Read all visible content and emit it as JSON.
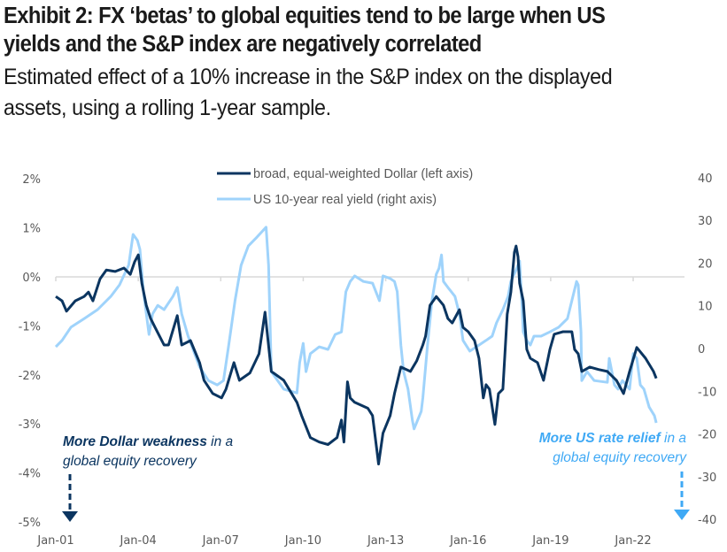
{
  "header": {
    "title_line1": "Exhibit 2: FX ‘betas’ to global equities tend to be large when US",
    "title_line2": "yields and the S&P index are negatively correlated",
    "subtitle_line1": "Estimated effect of a 10% increase in the S&P index on the displayed",
    "subtitle_line2": "assets, using a rolling 1-year sample."
  },
  "colors": {
    "dollar": "#0b3560",
    "real_yield": "#9fd3fb",
    "anno_dollar": "#0b3560",
    "anno_yield": "#3fa9f5",
    "grid": "#d9d9d9",
    "tick_text": "#595959"
  },
  "chart_data": {
    "type": "line",
    "title": "Exhibit 2: FX ‘betas’ to global equities tend to be large when US yields and the S&P index are negatively correlated",
    "subtitle": "Estimated effect of a 10% increase in the S&P index on the displayed assets, using a rolling 1-year sample.",
    "xlabel": "",
    "ylabel_left": "",
    "ylabel_right": "",
    "x_ticks": [
      "Jan-01",
      "Jan-04",
      "Jan-07",
      "Jan-10",
      "Jan-13",
      "Jan-16",
      "Jan-19",
      "Jan-22"
    ],
    "x_tick_years": [
      2001,
      2004,
      2007,
      2010,
      2013,
      2016,
      2019,
      2022
    ],
    "xlim": [
      2001,
      2023.5
    ],
    "y_left_ticks": [
      "2%",
      "1%",
      "0%",
      "-1%",
      "-2%",
      "-3%",
      "-4%",
      "-5%"
    ],
    "y_left_tick_values": [
      2,
      1,
      0,
      -1,
      -2,
      -3,
      -4,
      -5
    ],
    "ylim_left": [
      -5,
      2
    ],
    "y_right_ticks": [
      "40",
      "30",
      "20",
      "10",
      "0",
      "-10",
      "-20",
      "-30",
      "-40"
    ],
    "y_right_tick_values": [
      40,
      30,
      20,
      10,
      0,
      -10,
      -20,
      -30,
      -40
    ],
    "ylim_right": [
      -40,
      40
    ],
    "grid": "zero line only (left axis 0%)",
    "legend": {
      "placement": "top-center",
      "entries": [
        "broad, equal-weighted Dollar (left axis)",
        "US 10-year real yield (right axis)"
      ]
    },
    "annotations": [
      {
        "bold": "More Dollar weakness",
        "rest": " in a",
        "line2": "global equity recovery",
        "placement": "bottom-left",
        "arrow": "down"
      },
      {
        "bold": "More US rate relief",
        "rest": " in a",
        "line2": "global equity recovery",
        "placement": "bottom-right",
        "arrow": "down"
      }
    ],
    "series": [
      {
        "name": "broad, equal-weighted Dollar (left axis)",
        "axis": "left",
        "unit": "%",
        "x": [
          2001.0,
          2001.23,
          2001.39,
          2001.71,
          2002.03,
          2002.19,
          2002.35,
          2002.61,
          2002.84,
          2003.16,
          2003.48,
          2003.71,
          2003.87,
          2004.0,
          2004.13,
          2004.29,
          2004.45,
          2004.61,
          2004.94,
          2005.1,
          2005.42,
          2005.58,
          2005.9,
          2006.23,
          2006.39,
          2006.71,
          2007.03,
          2007.19,
          2007.48,
          2007.68,
          2008.06,
          2008.39,
          2008.61,
          2008.84,
          2009.29,
          2009.77,
          2009.94,
          2010.26,
          2010.58,
          2010.9,
          2011.23,
          2011.39,
          2011.48,
          2011.61,
          2011.71,
          2011.87,
          2012.35,
          2012.52,
          2012.68,
          2012.74,
          2012.9,
          2013.16,
          2013.32,
          2013.55,
          2013.9,
          2014.13,
          2014.35,
          2014.45,
          2014.61,
          2014.84,
          2015.1,
          2015.26,
          2015.42,
          2015.68,
          2015.81,
          2016.0,
          2016.23,
          2016.39,
          2016.55,
          2016.65,
          2016.77,
          2016.97,
          2017.1,
          2017.26,
          2017.42,
          2017.55,
          2017.68,
          2017.74,
          2017.81,
          2017.87,
          2018.0,
          2018.13,
          2018.26,
          2018.52,
          2018.74,
          2018.97,
          2019.13,
          2019.45,
          2019.77,
          2019.87,
          2020.0,
          2020.13,
          2020.42,
          2020.74,
          2021.06,
          2021.39,
          2021.65,
          2021.87,
          2022.13,
          2022.45,
          2022.74,
          2022.84
        ],
        "values": [
          -0.4,
          -0.49,
          -0.7,
          -0.49,
          -0.4,
          -0.31,
          -0.49,
          -0.04,
          0.14,
          0.11,
          0.18,
          0.05,
          0.31,
          0.45,
          -0.13,
          -0.58,
          -0.85,
          -1.03,
          -1.39,
          -1.39,
          -0.79,
          -1.39,
          -1.3,
          -1.75,
          -2.11,
          -2.38,
          -2.47,
          -2.29,
          -1.75,
          -2.11,
          -1.96,
          -1.57,
          -0.72,
          -1.93,
          -2.11,
          -2.56,
          -2.83,
          -3.28,
          -3.37,
          -3.42,
          -3.28,
          -2.92,
          -3.37,
          -2.14,
          -2.47,
          -2.56,
          -2.68,
          -2.83,
          -3.55,
          -3.82,
          -3.19,
          -2.83,
          -2.38,
          -1.84,
          -1.93,
          -1.71,
          -1.39,
          -1.21,
          -0.58,
          -0.4,
          -0.58,
          -0.85,
          -0.94,
          -0.67,
          -1.03,
          -1.12,
          -1.3,
          -1.66,
          -2.47,
          -2.2,
          -2.29,
          -3.01,
          -2.38,
          -2.29,
          -0.76,
          -0.31,
          0.5,
          0.63,
          0.41,
          -0.13,
          -0.49,
          -1.48,
          -1.66,
          -1.75,
          -2.11,
          -1.48,
          -1.17,
          -1.12,
          -1.12,
          -1.48,
          -1.57,
          -1.93,
          -1.84,
          -1.89,
          -1.93,
          -2.11,
          -2.38,
          -1.93,
          -1.44,
          -1.66,
          -1.93,
          -2.07
        ]
      },
      {
        "name": "US 10-year real yield (right axis)",
        "axis": "right",
        "unit": "bp",
        "x": [
          2001.0,
          2001.23,
          2001.55,
          2002.03,
          2002.52,
          2003.0,
          2003.32,
          2003.65,
          2003.81,
          2003.97,
          2004.06,
          2004.19,
          2004.39,
          2004.52,
          2004.71,
          2004.94,
          2005.26,
          2005.42,
          2005.58,
          2005.81,
          2006.23,
          2006.55,
          2006.87,
          2007.1,
          2007.29,
          2007.52,
          2007.74,
          2008.0,
          2008.32,
          2008.65,
          2008.74,
          2008.84,
          2009.29,
          2009.77,
          2009.87,
          2010.0,
          2010.1,
          2010.26,
          2010.58,
          2010.9,
          2011.16,
          2011.39,
          2011.55,
          2011.71,
          2011.87,
          2012.19,
          2012.52,
          2012.77,
          2012.9,
          2013.16,
          2013.32,
          2013.42,
          2013.55,
          2013.65,
          2013.81,
          2013.97,
          2014.03,
          2014.29,
          2014.35,
          2014.52,
          2014.68,
          2014.84,
          2014.94,
          2015.03,
          2015.1,
          2015.26,
          2015.52,
          2015.68,
          2015.81,
          2016.06,
          2016.39,
          2016.65,
          2016.87,
          2017.03,
          2017.26,
          2017.45,
          2017.55,
          2017.74,
          2017.87,
          2017.94,
          2018.0,
          2018.13,
          2018.26,
          2018.39,
          2018.65,
          2018.97,
          2019.29,
          2019.61,
          2019.77,
          2019.94,
          2020.0,
          2020.1,
          2020.13,
          2020.32,
          2020.58,
          2021.06,
          2021.13,
          2021.32,
          2021.45,
          2021.61,
          2021.87,
          2022.0,
          2022.13,
          2022.26,
          2022.39,
          2022.58,
          2022.77,
          2022.84
        ],
        "values": [
          0.4,
          1.9,
          5.0,
          7.0,
          9.1,
          12.2,
          14.9,
          19.5,
          26.7,
          25.3,
          23.2,
          13.3,
          3.3,
          8.1,
          10.1,
          9.1,
          12.2,
          14.3,
          8.1,
          2.9,
          -4.3,
          -7.5,
          -8.5,
          -7.5,
          0.8,
          11.2,
          19.5,
          24.0,
          26.1,
          28.4,
          19.5,
          -5.4,
          -9.5,
          -10.4,
          -3.3,
          1.2,
          -5.4,
          -1.2,
          0.4,
          -0.2,
          3.3,
          3.9,
          13.3,
          15.7,
          17.0,
          15.7,
          15.3,
          11.2,
          17.0,
          16.4,
          15.7,
          13.3,
          0.8,
          -5.4,
          -9.5,
          -16.8,
          -18.8,
          -14.7,
          -11.6,
          0.8,
          11.2,
          17.4,
          18.8,
          21.9,
          15.7,
          14.3,
          12.2,
          8.1,
          1.9,
          -0.6,
          0.8,
          1.9,
          2.9,
          6.0,
          9.1,
          12.2,
          15.7,
          18.4,
          20.5,
          12.2,
          3.9,
          1.9,
          0.8,
          2.9,
          2.9,
          3.9,
          5.0,
          7.0,
          11.2,
          15.7,
          14.9,
          3.9,
          -7.5,
          -5.4,
          -7.5,
          -7.9,
          -2.3,
          -8.5,
          -9.5,
          -7.5,
          -9.5,
          -1.2,
          -2.3,
          -8.5,
          -9.5,
          -13.7,
          -15.7,
          -17.4
        ]
      }
    ]
  }
}
